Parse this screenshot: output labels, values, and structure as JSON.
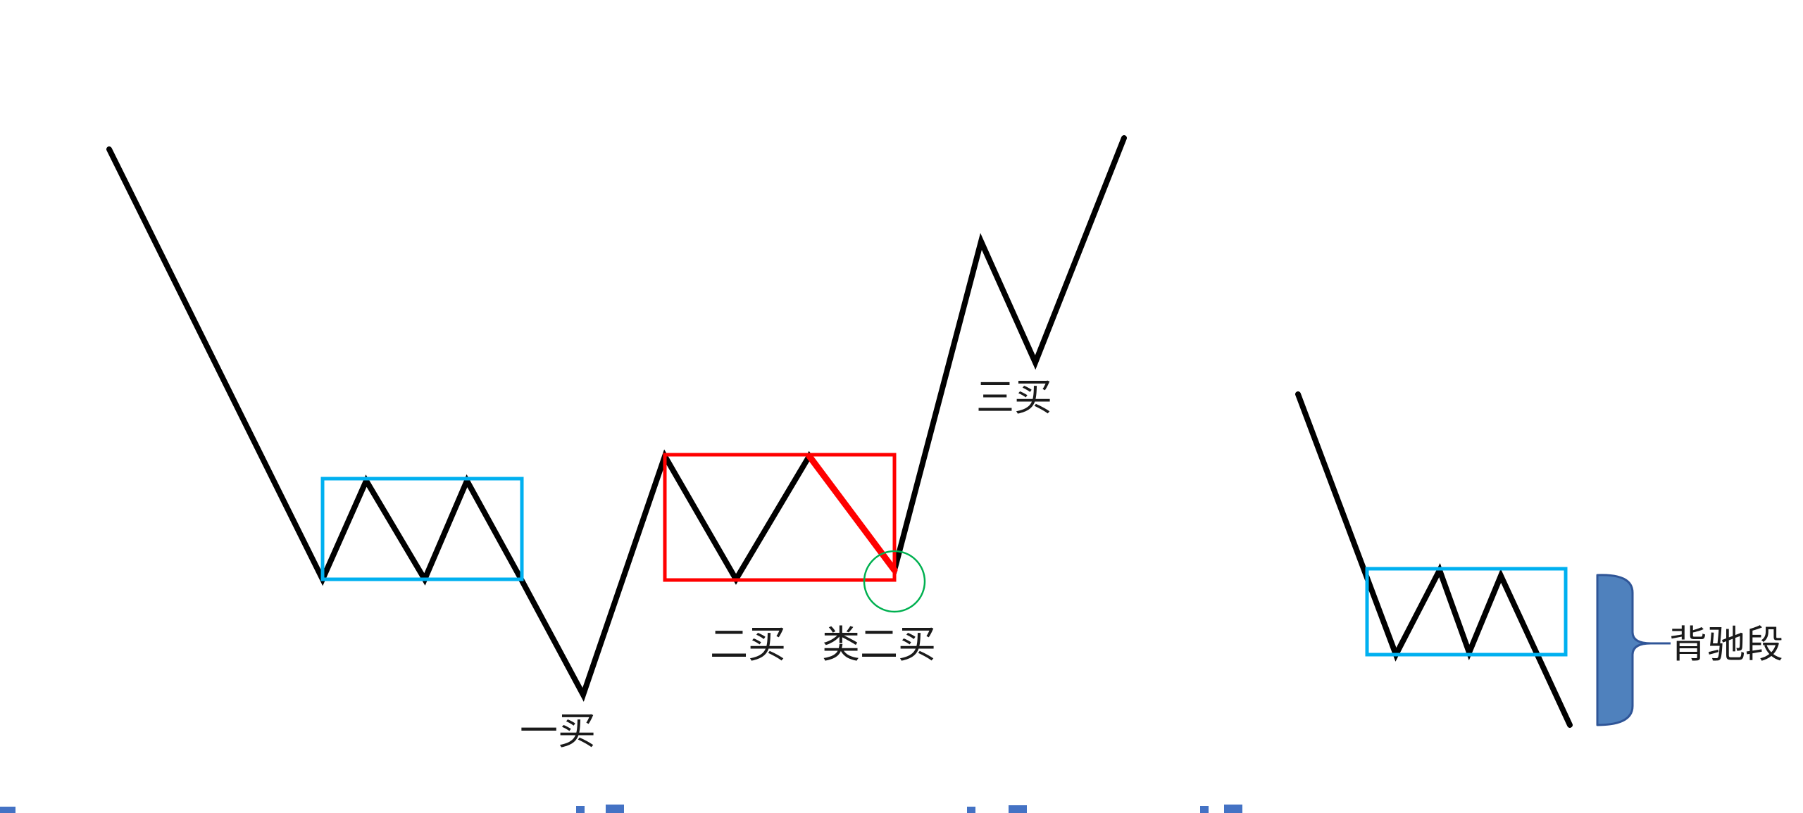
{
  "labels": {
    "buy1": "一买",
    "buy2": "二买",
    "buy2_like": "类二买",
    "buy3": "三买",
    "divergence": "背驰段"
  },
  "colors": {
    "line": "#000000",
    "zone_blue": "#00b0f0",
    "zone_red": "#ff0000",
    "circle_green": "#00b050",
    "brace_fill": "#4f81bd",
    "brace_stroke": "#2f5597",
    "bottom_fragments": "#4472c4"
  },
  "icons": {
    "brace": "right-curly-brace-icon"
  }
}
